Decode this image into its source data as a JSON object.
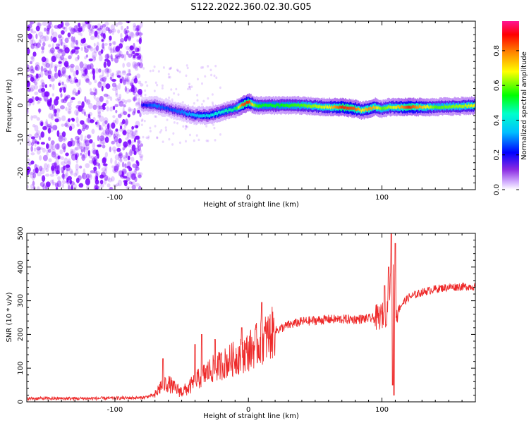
{
  "title": "S122.2022.360.02.30.G05",
  "chart_data": [
    {
      "type": "heatmap",
      "description_of_content": "spectrogram of normalized spectral amplitude",
      "xlabel": "Height of straight line (km)",
      "ylabel": "Frequency (Hz)",
      "xlim": [
        -166,
        170
      ],
      "ylim": [
        -25,
        25
      ],
      "xticks": [
        -100,
        0,
        100
      ],
      "yticks": [
        -20,
        -10,
        0,
        10,
        20
      ],
      "colorbar": {
        "label": "Normalized spectral amplitude",
        "range": [
          0,
          0.97
        ],
        "ticks": [
          0.0,
          0.2,
          0.4,
          0.6,
          0.8
        ]
      },
      "ridge": {
        "x": [
          -80,
          -70,
          -60,
          -50,
          -40,
          -30,
          -20,
          -10,
          -5,
          0,
          5,
          10,
          20,
          40,
          60,
          70,
          80,
          85,
          90,
          95,
          100,
          105,
          110,
          120,
          140,
          160,
          170
        ],
        "freq": [
          0,
          0,
          -1,
          -2,
          -3,
          -3,
          -2,
          -1,
          0,
          1,
          0,
          0,
          0,
          0,
          -0.5,
          -0.5,
          -1,
          -1.5,
          -1,
          -0.5,
          -1,
          -0.5,
          -0.5,
          -0.5,
          -0.5,
          -0.2,
          0
        ],
        "amplitude": [
          0.2,
          0.3,
          0.25,
          0.3,
          0.35,
          0.4,
          0.45,
          0.5,
          0.85,
          0.9,
          0.6,
          0.55,
          0.55,
          0.6,
          0.7,
          0.9,
          0.85,
          0.7,
          0.8,
          0.75,
          0.6,
          0.65,
          0.7,
          0.9,
          0.6,
          0.65,
          0.7
        ]
      },
      "scatter_region_x": [
        -166,
        -80
      ]
    },
    {
      "type": "line",
      "xlabel": "Height of straight line (km)",
      "ylabel": "SNR (10 * v/v)",
      "xlim": [
        -166,
        170
      ],
      "ylim": [
        0,
        500
      ],
      "xticks": [
        -100,
        0,
        100
      ],
      "yticks": [
        0,
        100,
        200,
        300,
        400,
        500
      ],
      "color": "#ee2a2a",
      "trend": {
        "x": [
          -166,
          -120,
          -80,
          -70,
          -65,
          -60,
          -55,
          -50,
          -45,
          -40,
          -30,
          -20,
          -10,
          0,
          10,
          20,
          30,
          40,
          60,
          80,
          95,
          100,
          103,
          105,
          108,
          110,
          115,
          120,
          130,
          140,
          150,
          160,
          170
        ],
        "snr": [
          10,
          10,
          12,
          20,
          50,
          55,
          40,
          30,
          40,
          60,
          90,
          110,
          130,
          150,
          180,
          210,
          228,
          238,
          245,
          245,
          248,
          255,
          260,
          300,
          420,
          260,
          290,
          310,
          325,
          335,
          340,
          342,
          342
        ]
      },
      "spikes": [
        {
          "x": -64,
          "snr": 128
        },
        {
          "x": -40,
          "snr": 170
        },
        {
          "x": -35,
          "snr": 200
        },
        {
          "x": -25,
          "snr": 185
        },
        {
          "x": -5,
          "snr": 220
        },
        {
          "x": 10,
          "snr": 295
        },
        {
          "x": 102,
          "snr": 345
        },
        {
          "x": 105,
          "snr": 400
        },
        {
          "x": 107,
          "snr": 500
        },
        {
          "x": 108,
          "snr": 50
        },
        {
          "x": 110,
          "snr": 470
        },
        {
          "x": 109,
          "snr": 20
        }
      ]
    }
  ],
  "colors": {
    "line": "#ee2a2a",
    "scatter": "#7a00ff"
  }
}
